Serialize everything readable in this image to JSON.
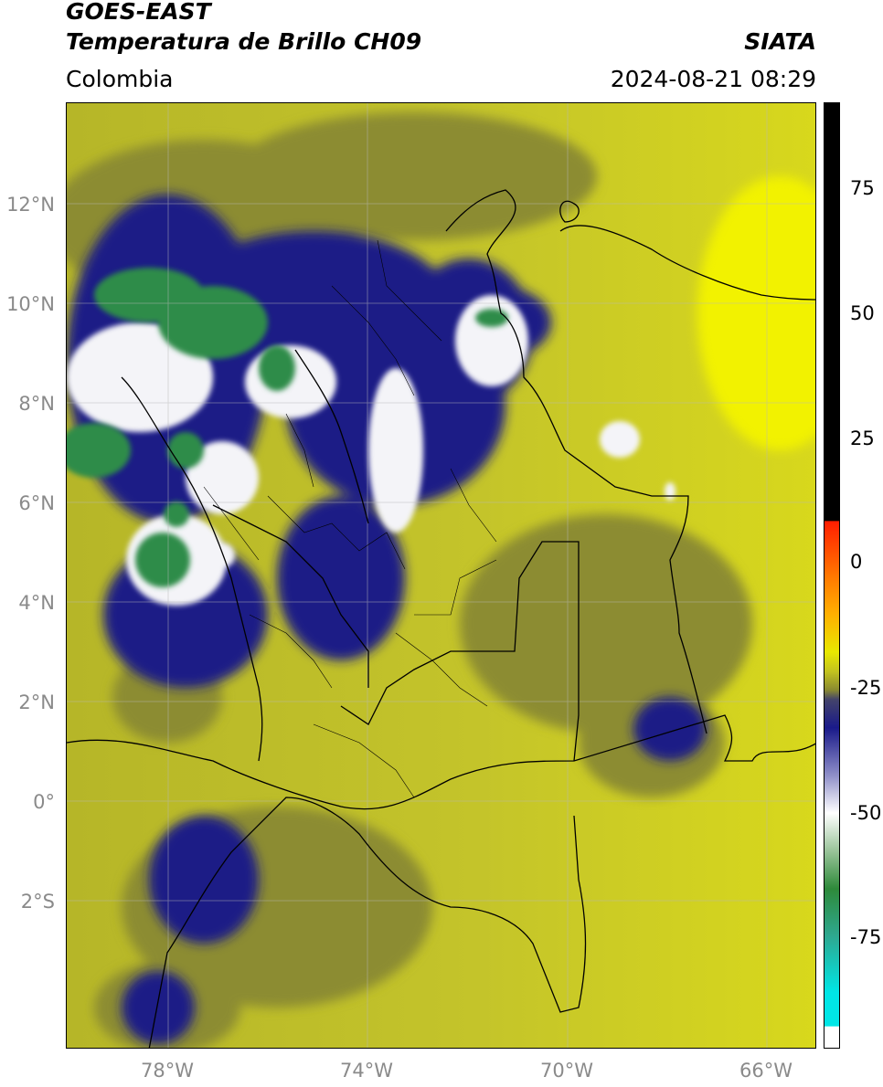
{
  "header": {
    "satellite": "GOES-EAST",
    "product": "Temperatura de Brillo CH09",
    "region": "Colombia",
    "source": "SIATA",
    "datetime": "2024-08-21 08:29"
  },
  "map": {
    "lat_ticks": [
      "12°N",
      "10°N",
      "8°N",
      "6°N",
      "4°N",
      "2°N",
      "0°",
      "2°S"
    ],
    "lon_ticks": [
      "78°W",
      "74°W",
      "70°W",
      "66°W"
    ],
    "grid": true
  },
  "colorbar": {
    "ticks": [
      "75",
      "50",
      "25",
      "0",
      "-25",
      "-50",
      "-75"
    ],
    "range": [
      -95,
      90
    ],
    "colors": {
      "black": "#000000",
      "red": "#ff1e00",
      "orange": "#ff9a00",
      "yellow": "#e8e800",
      "olive": "#8a8a2a",
      "navy": "#1a1a8a",
      "white": "#ffffff",
      "green": "#2e8a3a",
      "teal": "#2ea890",
      "cyan": "#00e6e6"
    }
  }
}
